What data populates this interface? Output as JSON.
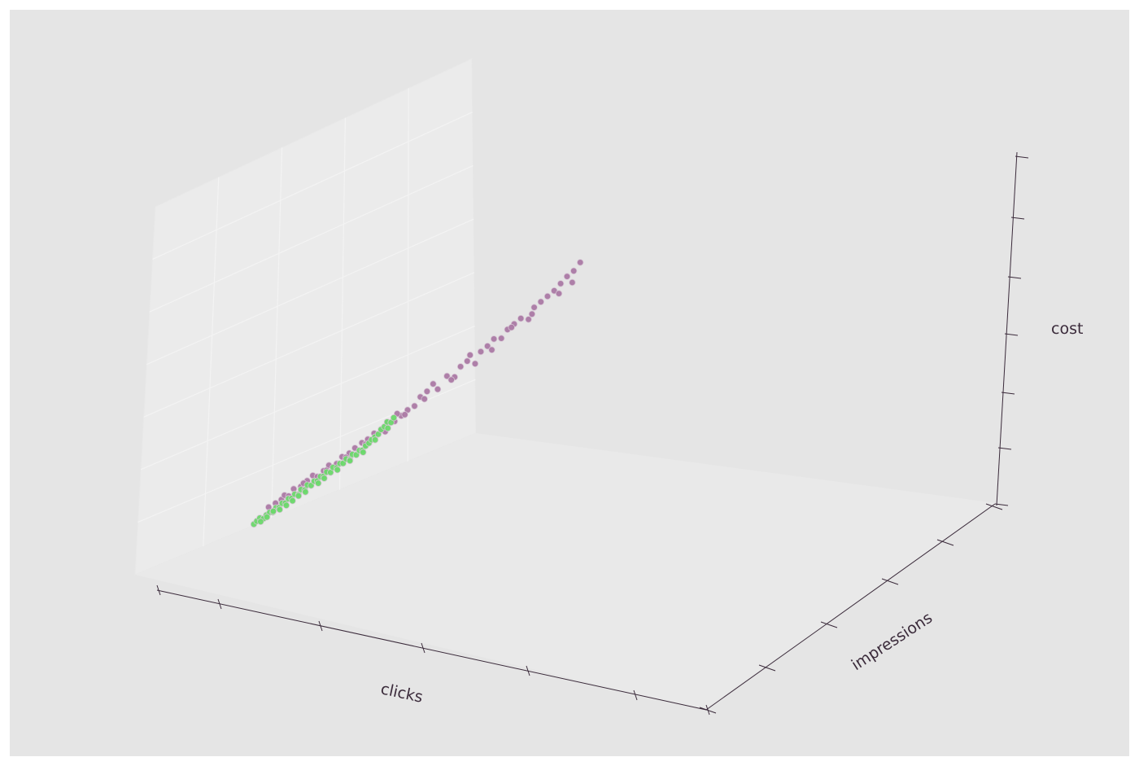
{
  "chart_data": {
    "type": "scatter",
    "projection": "3d",
    "xlabel": "clicks",
    "ylabel": "impressions",
    "zlabel": "cost",
    "grid": true,
    "tick_labels": "none",
    "series": [
      {
        "color": "#ab7aa5",
        "points": [
          [
            0.05,
            0.0,
            0.06
          ],
          [
            0.07,
            0.02,
            0.07
          ],
          [
            0.09,
            0.0,
            0.07
          ],
          [
            0.1,
            0.01,
            0.09
          ],
          [
            0.11,
            0.03,
            0.08
          ],
          [
            0.13,
            0.0,
            0.1
          ],
          [
            0.15,
            0.02,
            0.1
          ],
          [
            0.17,
            0.03,
            0.12
          ],
          [
            0.19,
            0.01,
            0.13
          ],
          [
            0.2,
            0.04,
            0.12
          ],
          [
            0.22,
            0.05,
            0.14
          ],
          [
            0.24,
            0.02,
            0.15
          ],
          [
            0.26,
            0.06,
            0.15
          ],
          [
            0.28,
            0.04,
            0.17
          ],
          [
            0.3,
            0.07,
            0.18
          ],
          [
            0.32,
            0.05,
            0.19
          ],
          [
            0.34,
            0.08,
            0.21
          ],
          [
            0.36,
            0.06,
            0.21
          ],
          [
            0.38,
            0.07,
            0.23
          ],
          [
            0.4,
            0.1,
            0.24
          ],
          [
            0.42,
            0.11,
            0.27
          ],
          [
            0.44,
            0.12,
            0.26
          ],
          [
            0.46,
            0.14,
            0.28
          ],
          [
            0.48,
            0.15,
            0.3
          ],
          [
            0.5,
            0.17,
            0.31
          ],
          [
            0.52,
            0.18,
            0.35
          ],
          [
            0.54,
            0.2,
            0.37
          ],
          [
            0.57,
            0.22,
            0.36
          ],
          [
            0.6,
            0.25,
            0.42
          ],
          [
            0.62,
            0.27,
            0.4
          ],
          [
            0.64,
            0.29,
            0.45
          ],
          [
            0.66,
            0.31,
            0.47
          ],
          [
            0.68,
            0.33,
            0.44
          ],
          [
            0.7,
            0.35,
            0.5
          ],
          [
            0.72,
            0.37,
            0.52
          ],
          [
            0.74,
            0.39,
            0.55
          ],
          [
            0.76,
            0.41,
            0.54
          ],
          [
            0.78,
            0.43,
            0.58
          ],
          [
            0.8,
            0.45,
            0.6
          ],
          [
            0.82,
            0.47,
            0.62
          ],
          [
            0.84,
            0.49,
            0.6
          ],
          [
            0.86,
            0.51,
            0.66
          ],
          [
            0.88,
            0.53,
            0.68
          ],
          [
            0.9,
            0.55,
            0.7
          ],
          [
            0.92,
            0.57,
            0.72
          ],
          [
            0.94,
            0.59,
            0.75
          ],
          [
            0.96,
            0.61,
            0.78
          ],
          [
            0.98,
            0.63,
            0.8
          ],
          [
            1.0,
            0.66,
            0.84
          ],
          [
            0.97,
            0.64,
            0.74
          ],
          [
            0.93,
            0.6,
            0.7
          ],
          [
            0.85,
            0.52,
            0.63
          ],
          [
            0.79,
            0.46,
            0.59
          ],
          [
            0.73,
            0.38,
            0.49
          ],
          [
            0.67,
            0.32,
            0.5
          ],
          [
            0.61,
            0.26,
            0.39
          ],
          [
            0.56,
            0.21,
            0.4
          ],
          [
            0.53,
            0.19,
            0.33
          ],
          [
            0.47,
            0.15,
            0.28
          ],
          [
            0.45,
            0.13,
            0.3
          ],
          [
            0.41,
            0.1,
            0.22
          ],
          [
            0.35,
            0.07,
            0.19
          ],
          [
            0.29,
            0.05,
            0.16
          ],
          [
            0.23,
            0.03,
            0.13
          ],
          [
            0.16,
            0.01,
            0.11
          ]
        ]
      },
      {
        "color": "#6cd96c",
        "points": [
          [
            0.0,
            0.0,
            0.0
          ],
          [
            0.01,
            0.0,
            0.01
          ],
          [
            0.02,
            0.0,
            0.02
          ],
          [
            0.03,
            0.01,
            0.01
          ],
          [
            0.04,
            0.0,
            0.02
          ],
          [
            0.05,
            0.01,
            0.03
          ],
          [
            0.06,
            0.0,
            0.02
          ],
          [
            0.07,
            0.01,
            0.04
          ],
          [
            0.08,
            0.0,
            0.03
          ],
          [
            0.09,
            0.01,
            0.05
          ],
          [
            0.1,
            0.0,
            0.04
          ],
          [
            0.11,
            0.01,
            0.06
          ],
          [
            0.12,
            0.0,
            0.05
          ],
          [
            0.13,
            0.01,
            0.07
          ],
          [
            0.14,
            0.02,
            0.06
          ],
          [
            0.15,
            0.01,
            0.08
          ],
          [
            0.16,
            0.02,
            0.07
          ],
          [
            0.17,
            0.01,
            0.09
          ],
          [
            0.18,
            0.02,
            0.08
          ],
          [
            0.19,
            0.03,
            0.1
          ],
          [
            0.2,
            0.02,
            0.09
          ],
          [
            0.21,
            0.03,
            0.11
          ],
          [
            0.22,
            0.02,
            0.1
          ],
          [
            0.23,
            0.03,
            0.12
          ],
          [
            0.24,
            0.04,
            0.11
          ],
          [
            0.25,
            0.03,
            0.13
          ],
          [
            0.26,
            0.04,
            0.12
          ],
          [
            0.27,
            0.05,
            0.14
          ],
          [
            0.28,
            0.04,
            0.13
          ],
          [
            0.29,
            0.05,
            0.15
          ],
          [
            0.3,
            0.06,
            0.14
          ],
          [
            0.31,
            0.05,
            0.16
          ],
          [
            0.32,
            0.06,
            0.15
          ],
          [
            0.33,
            0.07,
            0.17
          ],
          [
            0.34,
            0.06,
            0.16
          ],
          [
            0.35,
            0.07,
            0.18
          ],
          [
            0.36,
            0.08,
            0.19
          ],
          [
            0.37,
            0.07,
            0.2
          ],
          [
            0.38,
            0.08,
            0.21
          ],
          [
            0.39,
            0.09,
            0.22
          ],
          [
            0.4,
            0.09,
            0.24
          ],
          [
            0.41,
            0.1,
            0.25
          ],
          [
            0.42,
            0.1,
            0.27
          ],
          [
            0.43,
            0.11,
            0.26
          ],
          [
            0.44,
            0.11,
            0.28
          ],
          [
            0.02,
            0.01,
            0.0
          ],
          [
            0.04,
            0.01,
            0.01
          ],
          [
            0.06,
            0.02,
            0.03
          ],
          [
            0.08,
            0.01,
            0.02
          ],
          [
            0.1,
            0.02,
            0.03
          ],
          [
            0.12,
            0.02,
            0.04
          ],
          [
            0.14,
            0.01,
            0.05
          ],
          [
            0.16,
            0.03,
            0.06
          ],
          [
            0.2,
            0.04,
            0.08
          ],
          [
            0.22,
            0.03,
            0.09
          ],
          [
            0.26,
            0.05,
            0.11
          ],
          [
            0.3,
            0.05,
            0.13
          ],
          [
            0.34,
            0.07,
            0.15
          ],
          [
            0.38,
            0.07,
            0.19
          ],
          [
            0.42,
            0.09,
            0.23
          ]
        ]
      }
    ]
  }
}
